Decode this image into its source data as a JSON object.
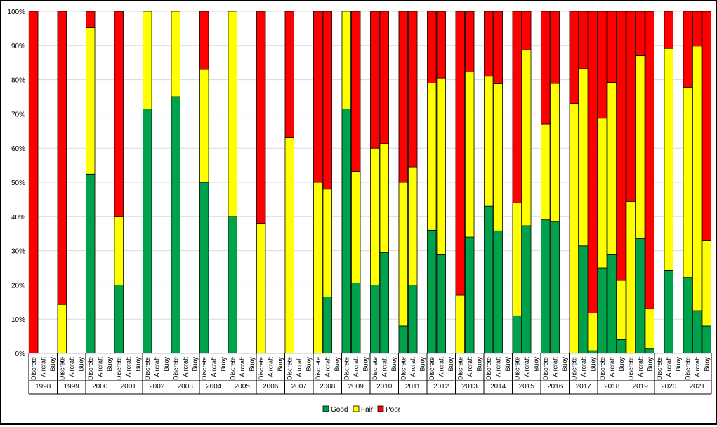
{
  "chart_data": {
    "type": "bar",
    "stacked": true,
    "percent_axis": true,
    "title": "",
    "xlabel": "",
    "ylabel": "",
    "ylim": [
      0,
      100
    ],
    "yticks": [
      "0%",
      "10%",
      "20%",
      "30%",
      "40%",
      "50%",
      "60%",
      "70%",
      "80%",
      "90%",
      "100%"
    ],
    "grid": true,
    "legend": "bottom",
    "sub_categories": [
      "Discrete",
      "Aircraft",
      "Buoy"
    ],
    "series": [
      {
        "name": "Good",
        "color": "#00a14b"
      },
      {
        "name": "Fair",
        "color": "#ffff00"
      },
      {
        "name": "Poor",
        "color": "#ff0000"
      }
    ],
    "groups": [
      {
        "year": "1998",
        "bars": [
          {
            "sub": "Discrete",
            "values": [
              0,
              0,
              100
            ]
          }
        ]
      },
      {
        "year": "1999",
        "bars": [
          {
            "sub": "Discrete",
            "values": [
              0,
              14.3,
              85.7
            ]
          }
        ]
      },
      {
        "year": "2000",
        "bars": [
          {
            "sub": "Discrete",
            "values": [
              52.4,
              42.8,
              4.8
            ]
          }
        ]
      },
      {
        "year": "2001",
        "bars": [
          {
            "sub": "Discrete",
            "values": [
              20,
              20,
              60
            ]
          }
        ]
      },
      {
        "year": "2002",
        "bars": [
          {
            "sub": "Discrete",
            "values": [
              71.4,
              28.6,
              0
            ]
          }
        ]
      },
      {
        "year": "2003",
        "bars": [
          {
            "sub": "Discrete",
            "values": [
              75,
              25,
              0
            ]
          }
        ]
      },
      {
        "year": "2004",
        "bars": [
          {
            "sub": "Discrete",
            "values": [
              50,
              33,
              17
            ]
          }
        ]
      },
      {
        "year": "2005",
        "bars": [
          {
            "sub": "Discrete",
            "values": [
              40,
              60,
              0
            ]
          }
        ]
      },
      {
        "year": "2006",
        "bars": [
          {
            "sub": "Discrete",
            "values": [
              0,
              38,
              62
            ]
          }
        ]
      },
      {
        "year": "2007",
        "bars": [
          {
            "sub": "Discrete",
            "values": [
              0,
              63,
              37
            ]
          }
        ]
      },
      {
        "year": "2008",
        "bars": [
          {
            "sub": "Discrete",
            "values": [
              0,
              50,
              50
            ]
          },
          {
            "sub": "Aircraft",
            "values": [
              16.5,
              31.5,
              52
            ]
          }
        ]
      },
      {
        "year": "2009",
        "bars": [
          {
            "sub": "Discrete",
            "values": [
              71.4,
              28.6,
              0
            ]
          },
          {
            "sub": "Aircraft",
            "values": [
              20.6,
              32.6,
              46.8
            ]
          }
        ]
      },
      {
        "year": "2010",
        "bars": [
          {
            "sub": "Discrete",
            "values": [
              20,
              40,
              40
            ]
          },
          {
            "sub": "Aircraft",
            "values": [
              29.4,
              31.9,
              38.7
            ]
          }
        ]
      },
      {
        "year": "2011",
        "bars": [
          {
            "sub": "Discrete",
            "values": [
              8,
              42,
              50
            ]
          },
          {
            "sub": "Aircraft",
            "values": [
              20,
              34.5,
              45.5
            ]
          }
        ]
      },
      {
        "year": "2012",
        "bars": [
          {
            "sub": "Discrete",
            "values": [
              36,
              43,
              21
            ]
          },
          {
            "sub": "Aircraft",
            "values": [
              29,
              51.5,
              19.5
            ]
          }
        ]
      },
      {
        "year": "2013",
        "bars": [
          {
            "sub": "Discrete",
            "values": [
              0,
              17,
              83
            ]
          },
          {
            "sub": "Aircraft",
            "values": [
              34,
              48.3,
              17.7
            ]
          }
        ]
      },
      {
        "year": "2014",
        "bars": [
          {
            "sub": "Discrete",
            "values": [
              43,
              38,
              19
            ]
          },
          {
            "sub": "Aircraft",
            "values": [
              35.8,
              43,
              21.2
            ]
          }
        ]
      },
      {
        "year": "2015",
        "bars": [
          {
            "sub": "Discrete",
            "values": [
              11,
              33,
              56
            ]
          },
          {
            "sub": "Aircraft",
            "values": [
              37.3,
              51.4,
              11.3
            ]
          }
        ]
      },
      {
        "year": "2016",
        "bars": [
          {
            "sub": "Discrete",
            "values": [
              39,
              28,
              33
            ]
          },
          {
            "sub": "Aircraft",
            "values": [
              38.6,
              40.3,
              21.1
            ]
          }
        ]
      },
      {
        "year": "2017",
        "bars": [
          {
            "sub": "Discrete",
            "values": [
              0,
              73,
              27
            ]
          },
          {
            "sub": "Aircraft",
            "values": [
              31.4,
              51.8,
              16.8
            ]
          },
          {
            "sub": "Buoy",
            "values": [
              0.8,
              11,
              88.2
            ]
          }
        ]
      },
      {
        "year": "2018",
        "bars": [
          {
            "sub": "Discrete",
            "values": [
              25,
              43.7,
              31.3
            ]
          },
          {
            "sub": "Aircraft",
            "values": [
              29,
              50.2,
              20.8
            ]
          },
          {
            "sub": "Buoy",
            "values": [
              4,
              17.3,
              78.7
            ]
          }
        ]
      },
      {
        "year": "2019",
        "bars": [
          {
            "sub": "Discrete",
            "values": [
              0,
              44.4,
              55.6
            ]
          },
          {
            "sub": "Aircraft",
            "values": [
              33.5,
              53.5,
              13
            ]
          },
          {
            "sub": "Buoy",
            "values": [
              1.3,
              11.8,
              86.9
            ]
          }
        ]
      },
      {
        "year": "2020",
        "bars": [
          {
            "sub": "Aircraft",
            "values": [
              24.3,
              64.8,
              10.9
            ]
          }
        ]
      },
      {
        "year": "2021",
        "bars": [
          {
            "sub": "Discrete",
            "values": [
              22.2,
              55.6,
              22.2
            ]
          },
          {
            "sub": "Aircraft",
            "values": [
              12.5,
              77.3,
              10.2
            ]
          },
          {
            "sub": "Buoy",
            "values": [
              8,
              24.9,
              67.1
            ]
          }
        ]
      }
    ]
  }
}
